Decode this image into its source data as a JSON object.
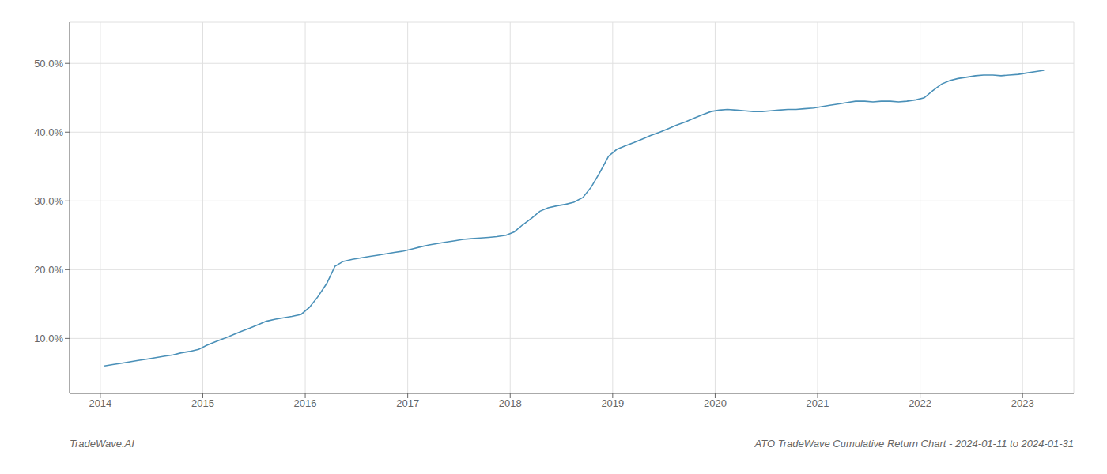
{
  "chart_data": {
    "type": "line",
    "title": "ATO TradeWave Cumulative Return Chart - 2024-01-11 to 2024-01-31",
    "annotations": [
      "TradeWave.AI"
    ],
    "color": "#4a90b8",
    "grid": true,
    "x": [
      2014.04,
      2014.12,
      2014.21,
      2014.29,
      2014.37,
      2014.46,
      2014.54,
      2014.62,
      2014.71,
      2014.79,
      2014.87,
      2014.96,
      2015.04,
      2015.12,
      2015.21,
      2015.29,
      2015.37,
      2015.46,
      2015.54,
      2015.62,
      2015.71,
      2015.79,
      2015.87,
      2015.96,
      2016.04,
      2016.12,
      2016.21,
      2016.29,
      2016.37,
      2016.46,
      2016.54,
      2016.62,
      2016.71,
      2016.79,
      2016.87,
      2016.96,
      2017.04,
      2017.12,
      2017.21,
      2017.29,
      2017.37,
      2017.46,
      2017.54,
      2017.62,
      2017.71,
      2017.79,
      2017.87,
      2017.96,
      2018.04,
      2018.12,
      2018.21,
      2018.29,
      2018.37,
      2018.46,
      2018.54,
      2018.62,
      2018.71,
      2018.79,
      2018.87,
      2018.96,
      2019.04,
      2019.12,
      2019.21,
      2019.29,
      2019.37,
      2019.46,
      2019.54,
      2019.62,
      2019.71,
      2019.79,
      2019.87,
      2019.96,
      2020.04,
      2020.12,
      2020.21,
      2020.29,
      2020.37,
      2020.46,
      2020.54,
      2020.62,
      2020.71,
      2020.79,
      2020.87,
      2020.96,
      2021.04,
      2021.12,
      2021.21,
      2021.29,
      2021.37,
      2021.46,
      2021.54,
      2021.62,
      2021.71,
      2021.79,
      2021.87,
      2021.96,
      2022.04,
      2022.12,
      2022.21,
      2022.29,
      2022.37,
      2022.46,
      2022.54,
      2022.62,
      2022.71,
      2022.79,
      2022.87,
      2022.96,
      2023.04,
      2023.12,
      2023.21
    ],
    "values": [
      6.0,
      6.2,
      6.4,
      6.6,
      6.8,
      7.0,
      7.2,
      7.4,
      7.6,
      7.9,
      8.1,
      8.4,
      9.0,
      9.5,
      10.0,
      10.5,
      11.0,
      11.5,
      12.0,
      12.5,
      12.8,
      13.0,
      13.2,
      13.5,
      14.5,
      16.0,
      18.0,
      20.5,
      21.2,
      21.5,
      21.7,
      21.9,
      22.1,
      22.3,
      22.5,
      22.7,
      23.0,
      23.3,
      23.6,
      23.8,
      24.0,
      24.2,
      24.4,
      24.5,
      24.6,
      24.7,
      24.8,
      25.0,
      25.5,
      26.5,
      27.5,
      28.5,
      29.0,
      29.3,
      29.5,
      29.8,
      30.5,
      32.0,
      34.0,
      36.5,
      37.5,
      38.0,
      38.5,
      39.0,
      39.5,
      40.0,
      40.5,
      41.0,
      41.5,
      42.0,
      42.5,
      43.0,
      43.2,
      43.3,
      43.2,
      43.1,
      43.0,
      43.0,
      43.1,
      43.2,
      43.3,
      43.3,
      43.4,
      43.5,
      43.7,
      43.9,
      44.1,
      44.3,
      44.5,
      44.5,
      44.4,
      44.5,
      44.5,
      44.4,
      44.5,
      44.7,
      45.0,
      46.0,
      47.0,
      47.5,
      47.8,
      48.0,
      48.2,
      48.3,
      48.3,
      48.2,
      48.3,
      48.4,
      48.6,
      48.8,
      49.0
    ],
    "xlim": [
      2013.7,
      2023.5
    ],
    "xticks": [
      2014,
      2015,
      2016,
      2017,
      2018,
      2019,
      2020,
      2021,
      2022,
      2023
    ],
    "ylim": [
      2.0,
      56.0
    ],
    "yticks": [
      {
        "value": 10.0,
        "label": "10.0%"
      },
      {
        "value": 20.0,
        "label": "20.0%"
      },
      {
        "value": 30.0,
        "label": "30.0%"
      },
      {
        "value": 40.0,
        "label": "40.0%"
      },
      {
        "value": 50.0,
        "label": "50.0%"
      }
    ]
  }
}
